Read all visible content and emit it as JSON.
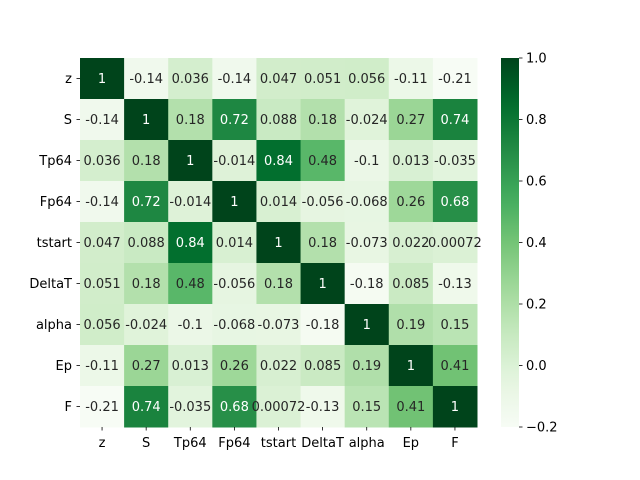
{
  "chart_data": {
    "type": "heatmap",
    "title": "",
    "xlabel": "",
    "ylabel": "",
    "labels": [
      "z",
      "S",
      "Tp64",
      "Fp64",
      "tstart",
      "DeltaT",
      "alpha",
      "Ep",
      "F"
    ],
    "matrix": [
      [
        1,
        -0.14,
        0.036,
        -0.14,
        0.047,
        0.051,
        0.056,
        -0.11,
        -0.21
      ],
      [
        -0.14,
        1,
        0.18,
        0.72,
        0.088,
        0.18,
        -0.024,
        0.27,
        0.74
      ],
      [
        0.036,
        0.18,
        1,
        -0.014,
        0.84,
        0.48,
        -0.1,
        0.013,
        -0.035
      ],
      [
        -0.14,
        0.72,
        -0.014,
        1,
        0.014,
        -0.056,
        -0.068,
        0.26,
        0.68
      ],
      [
        0.047,
        0.088,
        0.84,
        0.014,
        1,
        0.18,
        -0.073,
        0.022,
        0.00072
      ],
      [
        0.051,
        0.18,
        0.48,
        -0.056,
        0.18,
        1,
        -0.18,
        0.085,
        -0.13
      ],
      [
        0.056,
        -0.024,
        -0.1,
        -0.068,
        -0.073,
        -0.18,
        1,
        0.19,
        0.15
      ],
      [
        -0.11,
        0.27,
        0.013,
        0.26,
        0.022,
        0.085,
        0.19,
        1,
        0.41
      ],
      [
        -0.21,
        0.74,
        -0.035,
        0.68,
        0.00072,
        -0.13,
        0.15,
        0.41,
        1
      ]
    ],
    "annotations": [
      [
        "1",
        "-0.14",
        "0.036",
        "-0.14",
        "0.047",
        "0.051",
        "0.056",
        "-0.11",
        "-0.21"
      ],
      [
        "-0.14",
        "1",
        "0.18",
        "0.72",
        "0.088",
        "0.18",
        "-0.024",
        "0.27",
        "0.74"
      ],
      [
        "0.036",
        "0.18",
        "1",
        "-0.014",
        "0.84",
        "0.48",
        "-0.1",
        "0.013",
        "-0.035"
      ],
      [
        "-0.14",
        "0.72",
        "-0.014",
        "1",
        "0.014",
        "-0.056",
        "-0.068",
        "0.26",
        "0.68"
      ],
      [
        "0.047",
        "0.088",
        "0.84",
        "0.014",
        "1",
        "0.18",
        "-0.073",
        "0.022",
        "0.00072"
      ],
      [
        "0.051",
        "0.18",
        "0.48",
        "-0.056",
        "0.18",
        "1",
        "-0.18",
        "0.085",
        "-0.13"
      ],
      [
        "0.056",
        "-0.024",
        "-0.1",
        "-0.068",
        "-0.073",
        "-0.18",
        "1",
        "0.19",
        "0.15"
      ],
      [
        "-0.11",
        "0.27",
        "0.013",
        "0.26",
        "0.022",
        "0.085",
        "0.19",
        "1",
        "0.41"
      ],
      [
        "-0.21",
        "0.74",
        "-0.035",
        "0.68",
        "0.00072",
        "-0.13",
        "0.15",
        "0.41",
        "1"
      ]
    ],
    "colormap": "Greens",
    "colorbar": {
      "range": [
        -0.2,
        1.0
      ],
      "ticks": [
        -0.2,
        0.0,
        0.2,
        0.4,
        0.6,
        0.8,
        1.0
      ],
      "tick_labels": [
        "−0.2",
        "0.0",
        "0.2",
        "0.4",
        "0.6",
        "0.8",
        "1.0"
      ]
    },
    "colors": {
      "low": "#f7fcf5",
      "high": "#00441b",
      "text_dark": "#262626",
      "text_light": "#ffffff"
    }
  }
}
